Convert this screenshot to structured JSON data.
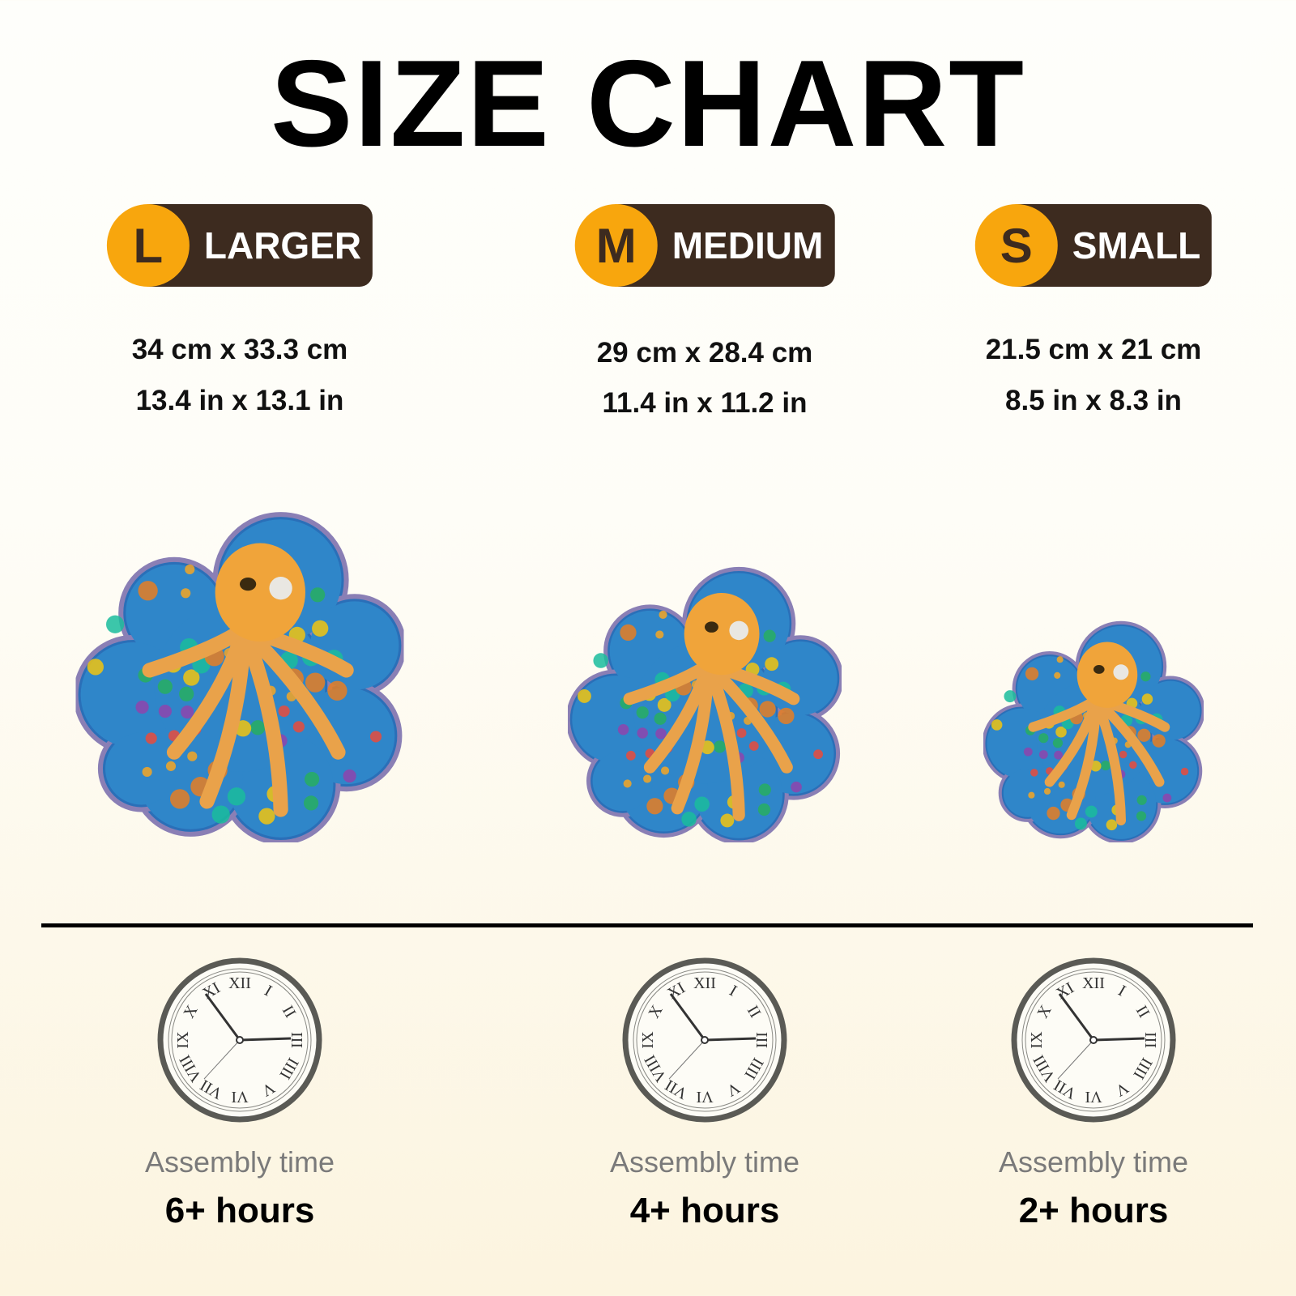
{
  "title": "SIZE CHART",
  "colors": {
    "badge_circle": "#f8a60d",
    "badge_pill": "#3d2b1f",
    "clock_ring": "#5a5a55"
  },
  "sizes": [
    {
      "letter": "L",
      "label": "LARGER",
      "cm": "34 cm x 33.3 cm",
      "inch": "13.4 in x 13.1 in",
      "assembly_label": "Assembly time",
      "assembly_time": "6+ hours",
      "image": "octopus-puzzle-large"
    },
    {
      "letter": "M",
      "label": "MEDIUM",
      "cm": "29 cm x 28.4 cm",
      "inch": "11.4 in x 11.2 in",
      "assembly_label": "Assembly time",
      "assembly_time": "4+ hours",
      "image": "octopus-puzzle-medium"
    },
    {
      "letter": "S",
      "label": "SMALL",
      "cm": "21.5 cm x 21 cm",
      "inch": "8.5 in x 8.3 in",
      "assembly_label": "Assembly time",
      "assembly_time": "2+ hours",
      "image": "octopus-puzzle-small"
    }
  ],
  "clock_numerals": [
    "XII",
    "I",
    "II",
    "III",
    "IIII",
    "V",
    "VI",
    "VII",
    "VIII",
    "IX",
    "X",
    "XI"
  ]
}
